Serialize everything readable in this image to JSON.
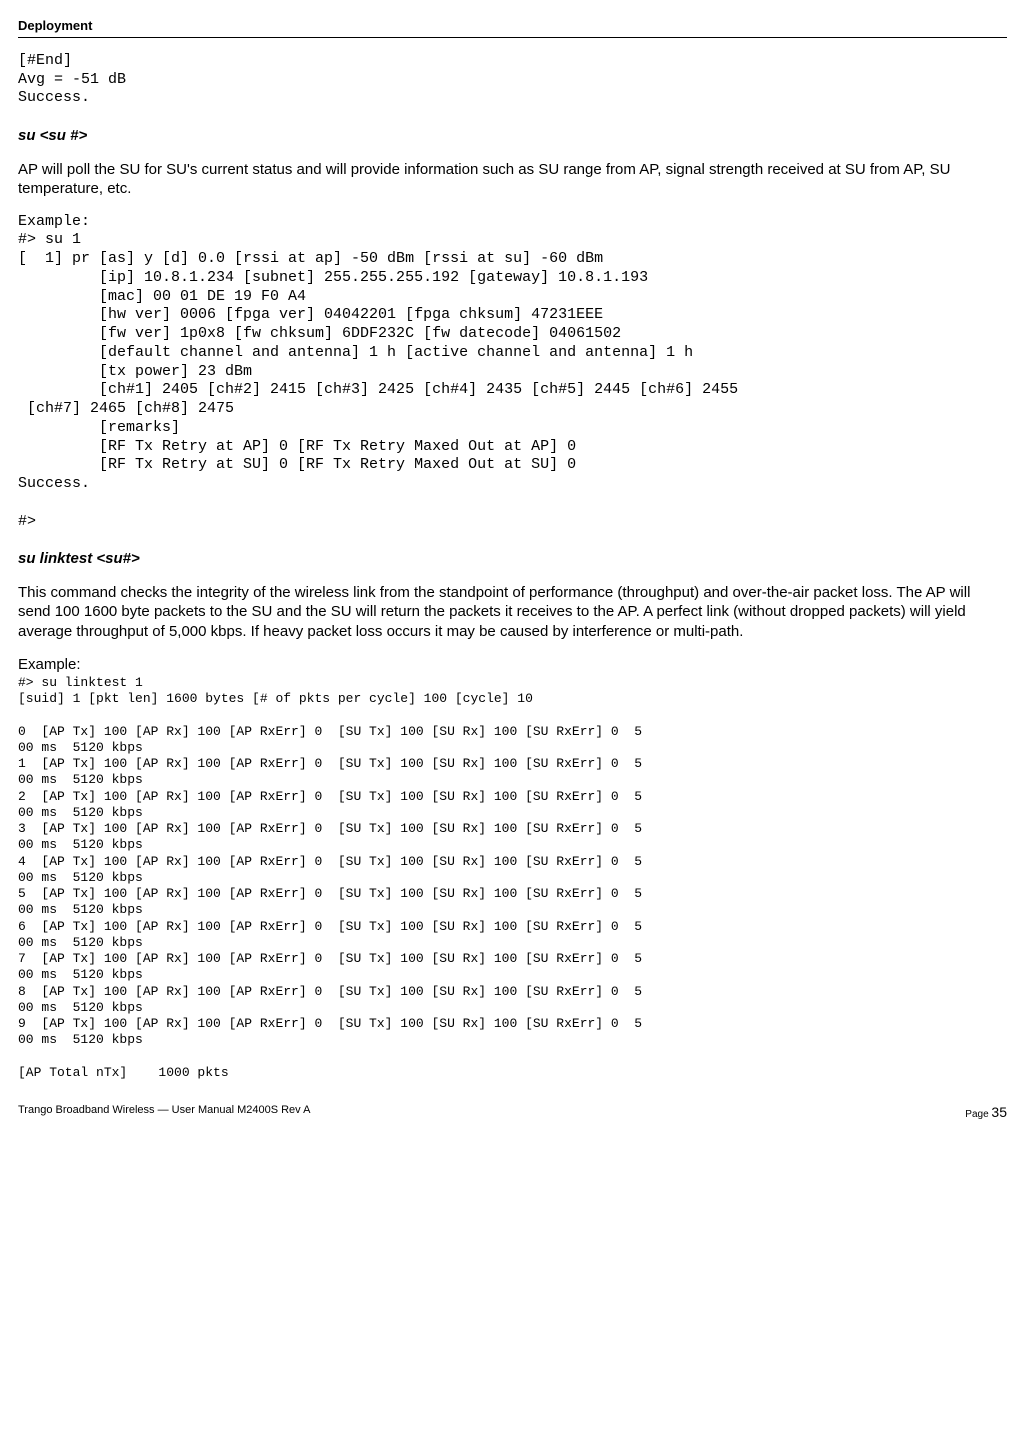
{
  "header": {
    "title": "Deployment"
  },
  "block1": {
    "lines": "[#End]\nAvg = -51 dB\nSuccess."
  },
  "sec1": {
    "title": "su  <su #>",
    "para": "AP will poll the SU for SU's current status and will provide information such as SU range from AP, signal strength received at SU from AP, SU temperature, etc.",
    "example": "Example:\n#> su 1\n[  1] pr [as] y [d] 0.0 [rssi at ap] -50 dBm [rssi at su] -60 dBm\n         [ip] 10.8.1.234 [subnet] 255.255.255.192 [gateway] 10.8.1.193\n         [mac] 00 01 DE 19 F0 A4\n         [hw ver] 0006 [fpga ver] 04042201 [fpga chksum] 47231EEE\n         [fw ver] 1p0x8 [fw chksum] 6DDF232C [fw datecode] 04061502\n         [default channel and antenna] 1 h [active channel and antenna] 1 h\n         [tx power] 23 dBm\n         [ch#1] 2405 [ch#2] 2415 [ch#3] 2425 [ch#4] 2435 [ch#5] 2445 [ch#6] 2455\n [ch#7] 2465 [ch#8] 2475\n         [remarks]\n         [RF Tx Retry at AP] 0 [RF Tx Retry Maxed Out at AP] 0\n         [RF Tx Retry at SU] 0 [RF Tx Retry Maxed Out at SU] 0\nSuccess.\n\n#>"
  },
  "sec2": {
    "title": "su linktest  <su#>",
    "para": "This command checks the integrity of the wireless link from the standpoint of performance (throughput) and over-the-air packet loss.  The AP will send 100 1600 byte packets to the SU and the SU will return the packets it receives to the AP. A perfect link (without dropped packets) will yield average throughput of 5,000 kbps.  If heavy packet loss occurs it may be caused by interference or multi-path.",
    "example_label": "Example:",
    "example": "#> su linktest 1\n[suid] 1 [pkt len] 1600 bytes [# of pkts per cycle] 100 [cycle] 10\n\n0  [AP Tx] 100 [AP Rx] 100 [AP RxErr] 0  [SU Tx] 100 [SU Rx] 100 [SU RxErr] 0  5\n00 ms  5120 kbps\n1  [AP Tx] 100 [AP Rx] 100 [AP RxErr] 0  [SU Tx] 100 [SU Rx] 100 [SU RxErr] 0  5\n00 ms  5120 kbps\n2  [AP Tx] 100 [AP Rx] 100 [AP RxErr] 0  [SU Tx] 100 [SU Rx] 100 [SU RxErr] 0  5\n00 ms  5120 kbps\n3  [AP Tx] 100 [AP Rx] 100 [AP RxErr] 0  [SU Tx] 100 [SU Rx] 100 [SU RxErr] 0  5\n00 ms  5120 kbps\n4  [AP Tx] 100 [AP Rx] 100 [AP RxErr] 0  [SU Tx] 100 [SU Rx] 100 [SU RxErr] 0  5\n00 ms  5120 kbps\n5  [AP Tx] 100 [AP Rx] 100 [AP RxErr] 0  [SU Tx] 100 [SU Rx] 100 [SU RxErr] 0  5\n00 ms  5120 kbps\n6  [AP Tx] 100 [AP Rx] 100 [AP RxErr] 0  [SU Tx] 100 [SU Rx] 100 [SU RxErr] 0  5\n00 ms  5120 kbps\n7  [AP Tx] 100 [AP Rx] 100 [AP RxErr] 0  [SU Tx] 100 [SU Rx] 100 [SU RxErr] 0  5\n00 ms  5120 kbps\n8  [AP Tx] 100 [AP Rx] 100 [AP RxErr] 0  [SU Tx] 100 [SU Rx] 100 [SU RxErr] 0  5\n00 ms  5120 kbps\n9  [AP Tx] 100 [AP Rx] 100 [AP RxErr] 0  [SU Tx] 100 [SU Rx] 100 [SU RxErr] 0  5\n00 ms  5120 kbps\n\n[AP Total nTx]    1000 pkts"
  },
  "footer": {
    "left": "Trango Broadband Wireless — User Manual M2400S Rev A",
    "page_label": "Page ",
    "page_num": "35"
  }
}
